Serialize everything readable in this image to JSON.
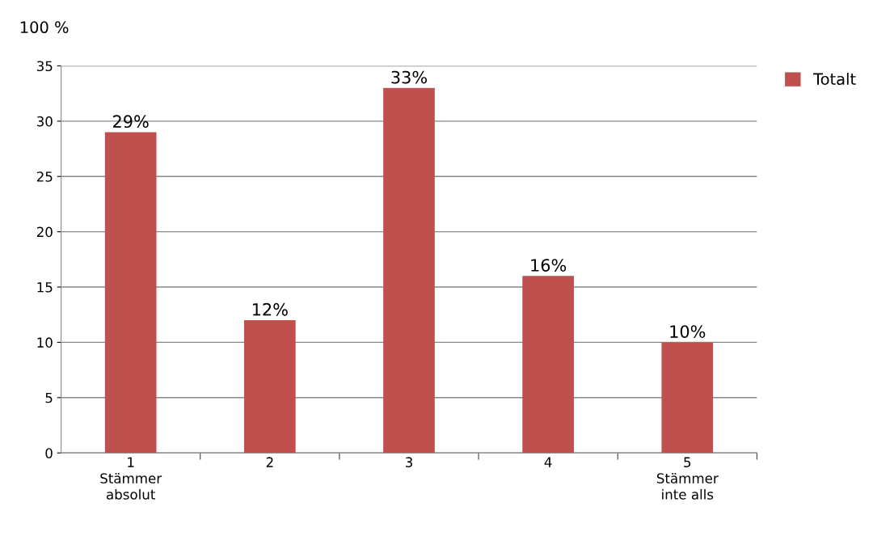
{
  "chart_data": {
    "type": "bar",
    "ylabel": "100 %",
    "categories": [
      "1\nStämmer\nabsolut",
      "2",
      "3",
      "4",
      "5\nStämmer\ninte alls"
    ],
    "series": [
      {
        "name": "Totalt",
        "color": "#c0504d",
        "values": [
          29,
          12,
          33,
          16,
          10
        ],
        "value_labels": [
          "29%",
          "12%",
          "33%",
          "16%",
          "10%"
        ]
      }
    ],
    "ylim": [
      0,
      35
    ],
    "yticks": [
      0,
      5,
      10,
      15,
      20,
      25,
      30,
      35
    ],
    "grid": "y",
    "legend": "top right"
  }
}
